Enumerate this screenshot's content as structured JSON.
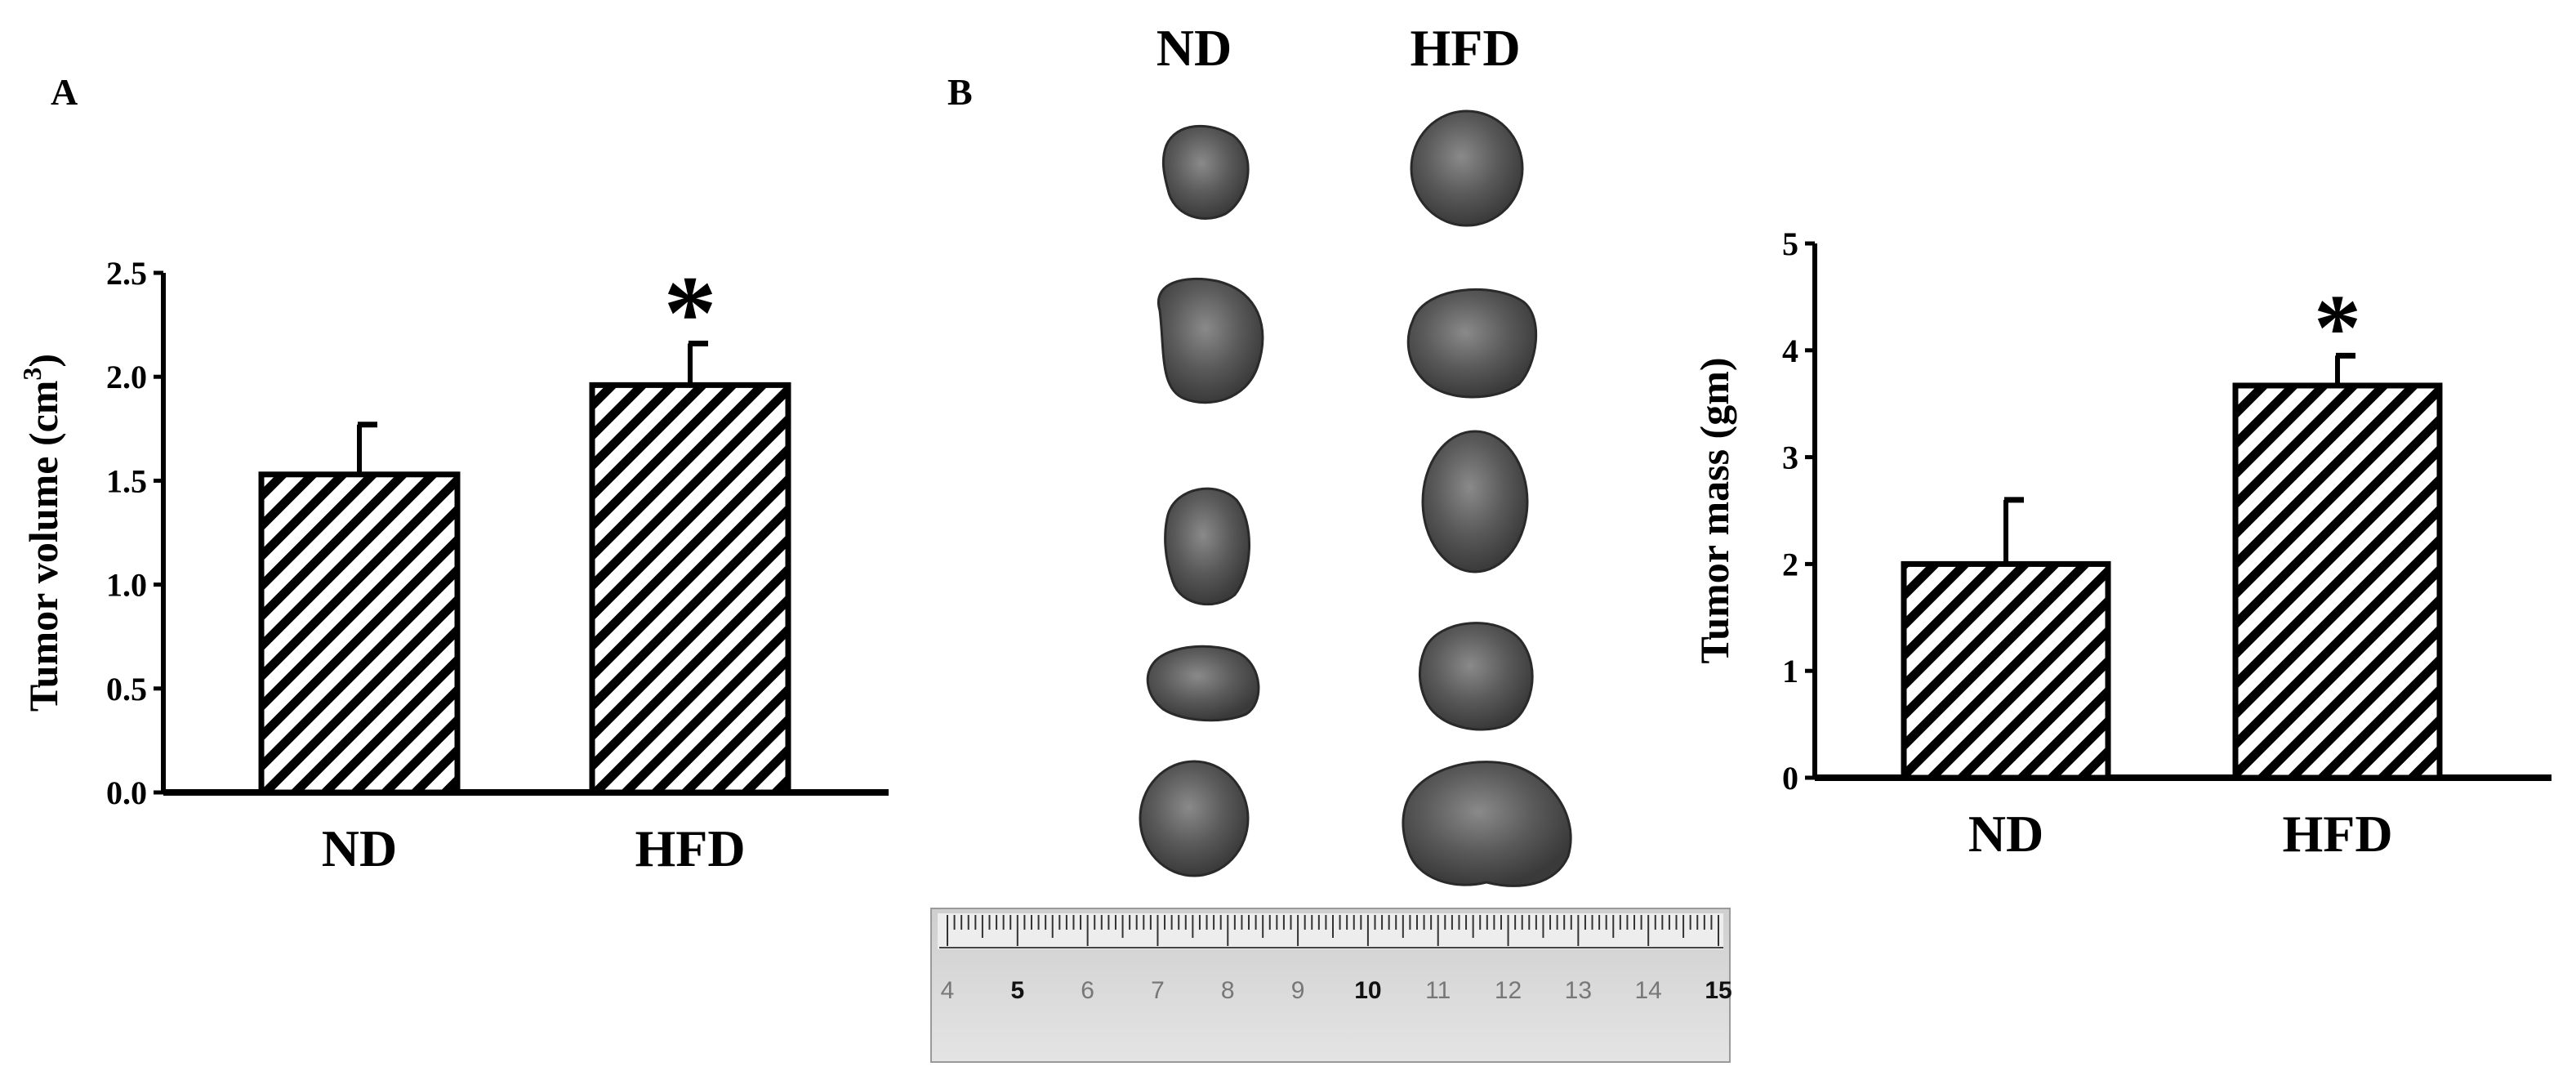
{
  "panels": {
    "a": {
      "letter": "A"
    },
    "b": {
      "letter": "B"
    }
  },
  "photo": {
    "column_labels": [
      "ND",
      "HFD"
    ],
    "ruler_numbers": [
      "4",
      "5",
      "6",
      "7",
      "8",
      "9",
      "10",
      "11",
      "12",
      "13",
      "14",
      "15"
    ]
  },
  "colors": {
    "bar_stroke": "#000000",
    "hatch": "#000000",
    "background": "#ffffff"
  },
  "chart_data": [
    {
      "type": "bar",
      "categories": [
        "ND",
        "HFD"
      ],
      "values": [
        1.53,
        1.96
      ],
      "errors": [
        0.24,
        0.2
      ],
      "significance": [
        "",
        "*"
      ],
      "ylabel": "Tumor volume (cm",
      "ylabel_superscript": "3",
      "ylabel_close": ")",
      "ylim": [
        0,
        2.5
      ],
      "yticks": [
        "0.0",
        "0.5",
        "1.0",
        "1.5",
        "2.0",
        "2.5"
      ],
      "fill": "diagonal hatch",
      "grid": false
    },
    {
      "type": "bar",
      "categories": [
        "ND",
        "HFD"
      ],
      "values": [
        2.0,
        3.67
      ],
      "errors": [
        0.6,
        0.28
      ],
      "significance": [
        "",
        "*"
      ],
      "ylabel": "Tumor mass (gm)",
      "ylim": [
        0,
        5
      ],
      "yticks": [
        "0",
        "1",
        "2",
        "3",
        "4",
        "5"
      ],
      "fill": "diagonal hatch",
      "grid": false
    }
  ]
}
